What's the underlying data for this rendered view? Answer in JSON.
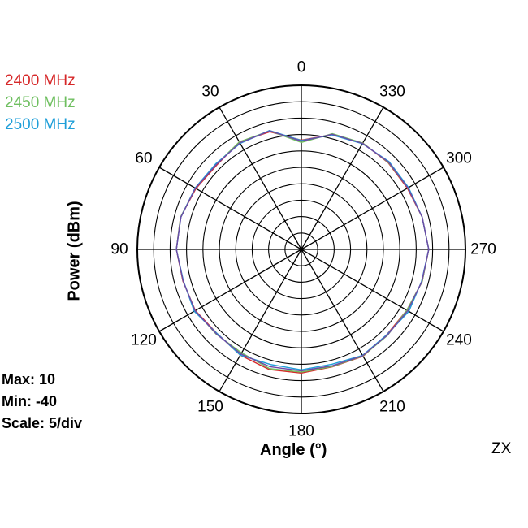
{
  "chart_data": {
    "type": "polar-line",
    "plane_label": "ZX",
    "xlabel": "Angle  (°)",
    "ylabel": "Power  (dBm)",
    "stats": {
      "max": "Max: 10",
      "min": "Min: -40",
      "scale": "Scale: 5/div"
    },
    "r_range": [
      -40,
      10
    ],
    "r_step": 5,
    "angle_ticks": [
      "0",
      "30",
      "60",
      "90",
      "120",
      "150",
      "180",
      "210",
      "240",
      "270",
      "300",
      "330"
    ],
    "angles": [
      0,
      15,
      30,
      45,
      60,
      75,
      90,
      105,
      120,
      135,
      150,
      165,
      180,
      195,
      210,
      225,
      240,
      255,
      270,
      285,
      300,
      315,
      330,
      345
    ],
    "series": [
      {
        "name": "2400 MHz",
        "color": "#d62728",
        "values": [
          -6.7,
          -2.9,
          -2.2,
          -3.6,
          -2.9,
          -1.9,
          -1.9,
          -2.6,
          -2.7,
          -3.7,
          -2.8,
          -2.1,
          -2.3,
          -3.0,
          -2.4,
          -3.2,
          -2.9,
          -1.9,
          -1.2,
          -1.9,
          -2.7,
          -2.6,
          -2.6,
          -3.8
        ]
      },
      {
        "name": "2450 MHz",
        "color": "#6fbf60",
        "values": [
          -7.4,
          -2.6,
          -2.2,
          -3.3,
          -2.7,
          -1.9,
          -1.9,
          -2.7,
          -2.6,
          -3.4,
          -3.6,
          -2.4,
          -2.6,
          -3.1,
          -2.5,
          -2.9,
          -2.9,
          -1.9,
          -1.2,
          -1.9,
          -2.5,
          -2.5,
          -2.6,
          -3.5
        ]
      },
      {
        "name": "2500 MHz",
        "color": "#1f9fd9",
        "values": [
          -6.8,
          -2.5,
          -2.7,
          -3.1,
          -2.6,
          -2.0,
          -1.9,
          -2.8,
          -2.3,
          -3.7,
          -2.8,
          -3.7,
          -3.3,
          -3.8,
          -2.7,
          -3.2,
          -2.2,
          -2.1,
          -1.2,
          -1.9,
          -2.3,
          -2.2,
          -2.8,
          -3.9
        ]
      },
      {
        "name": "",
        "color": "#6e4aa8",
        "values": [
          -7.0,
          -2.6,
          -2.5,
          -3.4,
          -2.7,
          -2.0,
          -1.9,
          -2.7,
          -2.6,
          -3.5,
          -3.2,
          -3.0,
          -3.0,
          -3.3,
          -2.6,
          -3.0,
          -2.6,
          -2.0,
          -1.2,
          -1.9,
          -2.5,
          -2.4,
          -2.7,
          -3.7
        ]
      }
    ],
    "grid": true,
    "legend_position": "top-left"
  }
}
